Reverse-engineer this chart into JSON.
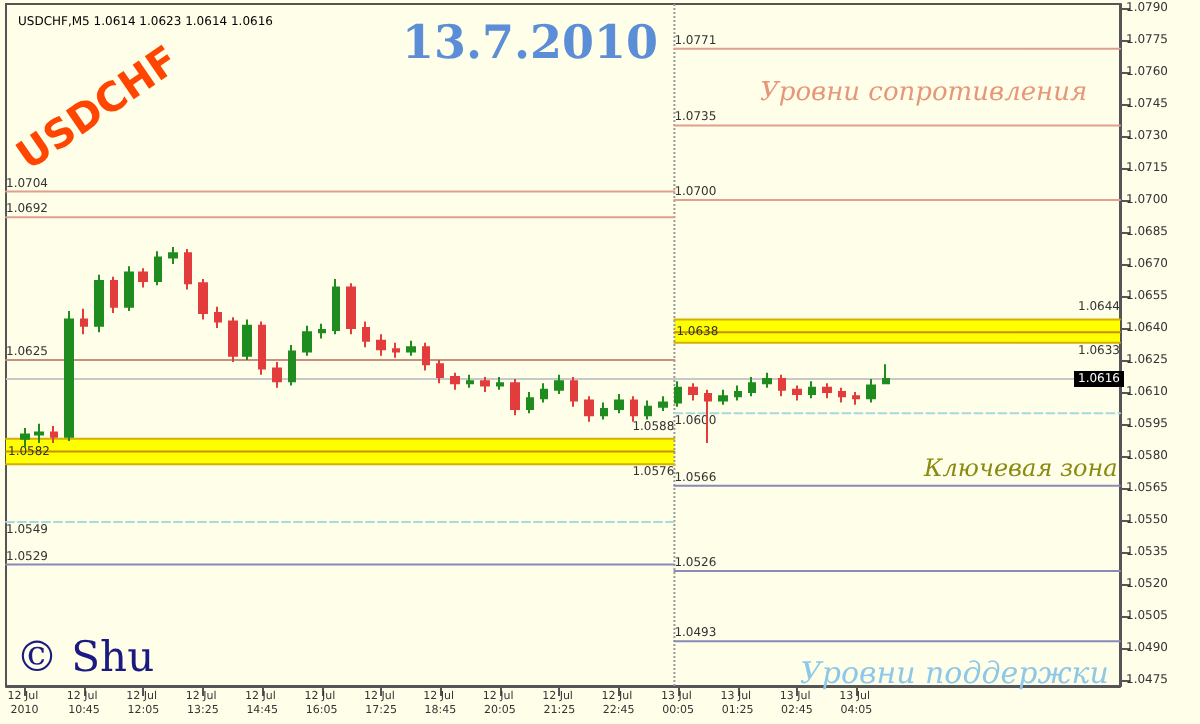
{
  "chart_data": {
    "type": "candlestick",
    "title": "13.7.2010",
    "subtitle": "USDCHF,M5 1.0614 1.0623 1.0614 1.0616",
    "annotations": [
      "USDCHF",
      "Уровни сопротивления",
      "Ключевая зона",
      "Уровни поддержки",
      "© Shu"
    ],
    "x": [
      "2010-07-12T09:25",
      "2010-07-12T09:45",
      "2010-07-12T10:05",
      "2010-07-12T10:25",
      "2010-07-12T10:45",
      "2010-07-12T11:05",
      "2010-07-12T11:25",
      "2010-07-12T11:45",
      "2010-07-12T12:05",
      "2010-07-12T12:25",
      "2010-07-12T12:45",
      "2010-07-12T13:05",
      "2010-07-12T13:25",
      "2010-07-12T13:45",
      "2010-07-12T14:05",
      "2010-07-12T14:25",
      "2010-07-12T14:45",
      "2010-07-12T15:05",
      "2010-07-12T15:25",
      "2010-07-12T15:45",
      "2010-07-12T16:05",
      "2010-07-12T16:25",
      "2010-07-12T16:45",
      "2010-07-12T17:05",
      "2010-07-12T17:25",
      "2010-07-12T17:45",
      "2010-07-12T18:05",
      "2010-07-12T18:25",
      "2010-07-12T18:45",
      "2010-07-12T19:05",
      "2010-07-12T19:25",
      "2010-07-12T19:45",
      "2010-07-12T20:05",
      "2010-07-12T20:25",
      "2010-07-12T20:45",
      "2010-07-12T21:05",
      "2010-07-12T21:25",
      "2010-07-12T21:45",
      "2010-07-12T22:05",
      "2010-07-12T22:25",
      "2010-07-12T22:45",
      "2010-07-12T23:05",
      "2010-07-12T23:25",
      "2010-07-12T23:45",
      "2010-07-13T00:05",
      "2010-07-13T00:25",
      "2010-07-13T00:45",
      "2010-07-13T01:05",
      "2010-07-13T01:25",
      "2010-07-13T01:45",
      "2010-07-13T02:05",
      "2010-07-13T02:25",
      "2010-07-13T02:45",
      "2010-07-13T03:05",
      "2010-07-13T03:25",
      "2010-07-13T03:45",
      "2010-07-13T04:05",
      "2010-07-13T04:25",
      "2010-07-13T04:45"
    ],
    "ohlc": [
      [
        1.0588,
        1.0593,
        1.0584,
        1.059
      ],
      [
        1.059,
        1.0595,
        1.0586,
        1.0591
      ],
      [
        1.0591,
        1.0594,
        1.0586,
        1.0589
      ],
      [
        1.0589,
        1.0648,
        1.0587,
        1.0644
      ],
      [
        1.0644,
        1.0649,
        1.0637,
        1.0641
      ],
      [
        1.0641,
        1.0665,
        1.0638,
        1.0662
      ],
      [
        1.0662,
        1.0664,
        1.0647,
        1.065
      ],
      [
        1.065,
        1.0669,
        1.0648,
        1.0666
      ],
      [
        1.0666,
        1.0668,
        1.0659,
        1.0662
      ],
      [
        1.0662,
        1.0676,
        1.066,
        1.0673
      ],
      [
        1.0673,
        1.0678,
        1.067,
        1.0675
      ],
      [
        1.0675,
        1.0677,
        1.0658,
        1.0661
      ],
      [
        1.0661,
        1.0663,
        1.0644,
        1.0647
      ],
      [
        1.0647,
        1.065,
        1.064,
        1.0643
      ],
      [
        1.0643,
        1.0645,
        1.0624,
        1.0627
      ],
      [
        1.0627,
        1.0644,
        1.0625,
        1.0641
      ],
      [
        1.0641,
        1.0643,
        1.0618,
        1.0621
      ],
      [
        1.0621,
        1.0624,
        1.0612,
        1.0615
      ],
      [
        1.0615,
        1.0632,
        1.0613,
        1.0629
      ],
      [
        1.0629,
        1.0641,
        1.0627,
        1.0638
      ],
      [
        1.0638,
        1.0642,
        1.0635,
        1.0639
      ],
      [
        1.0639,
        1.0663,
        1.0637,
        1.0659
      ],
      [
        1.0659,
        1.0661,
        1.0637,
        1.064
      ],
      [
        1.064,
        1.0643,
        1.0631,
        1.0634
      ],
      [
        1.0634,
        1.0637,
        1.0627,
        1.063
      ],
      [
        1.063,
        1.0633,
        1.0626,
        1.0629
      ],
      [
        1.0629,
        1.0634,
        1.0627,
        1.0631
      ],
      [
        1.0631,
        1.0633,
        1.062,
        1.0623
      ],
      [
        1.0623,
        1.0625,
        1.0614,
        1.0617
      ],
      [
        1.0617,
        1.0619,
        1.0611,
        1.0614
      ],
      [
        1.0614,
        1.0618,
        1.0612,
        1.0615
      ],
      [
        1.0615,
        1.0617,
        1.061,
        1.0613
      ],
      [
        1.0613,
        1.0617,
        1.0611,
        1.0614
      ],
      [
        1.0614,
        1.0616,
        1.0599,
        1.0602
      ],
      [
        1.0602,
        1.061,
        1.06,
        1.0607
      ],
      [
        1.0607,
        1.0614,
        1.0605,
        1.0611
      ],
      [
        1.0611,
        1.0618,
        1.0609,
        1.0615
      ],
      [
        1.0615,
        1.0617,
        1.0603,
        1.0606
      ],
      [
        1.0606,
        1.0608,
        1.0596,
        1.0599
      ],
      [
        1.0599,
        1.0605,
        1.0597,
        1.0602
      ],
      [
        1.0602,
        1.0609,
        1.06,
        1.0606
      ],
      [
        1.0606,
        1.0608,
        1.0596,
        1.0599
      ],
      [
        1.0599,
        1.0606,
        1.0597,
        1.0603
      ],
      [
        1.0603,
        1.0608,
        1.0601,
        1.0605
      ],
      [
        1.0605,
        1.0615,
        1.0603,
        1.0612
      ],
      [
        1.0612,
        1.0614,
        1.0606,
        1.0609
      ],
      [
        1.0609,
        1.0611,
        1.0586,
        1.0606
      ],
      [
        1.0606,
        1.0611,
        1.0604,
        1.0608
      ],
      [
        1.0608,
        1.0613,
        1.0606,
        1.061
      ],
      [
        1.061,
        1.0617,
        1.0608,
        1.0614
      ],
      [
        1.0614,
        1.0619,
        1.0612,
        1.0616
      ],
      [
        1.0616,
        1.0618,
        1.0608,
        1.0611
      ],
      [
        1.0611,
        1.0613,
        1.0606,
        1.0609
      ],
      [
        1.0609,
        1.0615,
        1.0607,
        1.0612
      ],
      [
        1.0612,
        1.0614,
        1.0607,
        1.061
      ],
      [
        1.061,
        1.0612,
        1.0605,
        1.0608
      ],
      [
        1.0608,
        1.061,
        1.0604,
        1.0607
      ],
      [
        1.0607,
        1.0616,
        1.0605,
        1.0613
      ],
      [
        1.0614,
        1.0623,
        1.0614,
        1.0616
      ]
    ],
    "series": [
      {
        "type": "line",
        "name": "1.0704",
        "color": "#e0a090",
        "x": [
          "2010-07-12T09:00",
          "2010-07-13T00:00"
        ],
        "values": [
          1.0704,
          1.0704
        ]
      },
      {
        "type": "line",
        "name": "1.0692",
        "color": "#e0a090",
        "x": [
          "2010-07-12T09:00",
          "2010-07-13T00:00"
        ],
        "values": [
          1.0692,
          1.0692
        ]
      },
      {
        "type": "line",
        "name": "1.0625",
        "color": "#c8907c",
        "x": [
          "2010-07-12T09:00",
          "2010-07-13T00:00"
        ],
        "values": [
          1.0625,
          1.0625
        ]
      },
      {
        "type": "line",
        "name": "1.0588",
        "color": "#d4b000",
        "x": [
          "2010-07-12T09:00",
          "2010-07-13T00:00"
        ],
        "values": [
          1.0588,
          1.0588
        ]
      },
      {
        "type": "line",
        "name": "1.0582",
        "color": "#c89000",
        "x": [
          "2010-07-12T09:00",
          "2010-07-13T00:00"
        ],
        "values": [
          1.0582,
          1.0582
        ],
        "lower": [
          1.0576,
          1.0576
        ],
        "upper": [
          1.0588,
          1.0588
        ]
      },
      {
        "type": "line",
        "name": "1.0576",
        "color": "#d4b000",
        "x": [
          "2010-07-12T09:00",
          "2010-07-13T00:00"
        ],
        "values": [
          1.0576,
          1.0576
        ]
      },
      {
        "type": "line",
        "name": "1.0549",
        "color": "#a8d8e0",
        "line_style": "dashed",
        "x": [
          "2010-07-12T09:00",
          "2010-07-13T00:00"
        ],
        "values": [
          1.0549,
          1.0549
        ]
      },
      {
        "type": "line",
        "name": "1.0529",
        "color": "#8a8ab8",
        "x": [
          "2010-07-12T09:00",
          "2010-07-13T00:00"
        ],
        "values": [
          1.0529,
          1.0529
        ]
      },
      {
        "type": "line",
        "name": "1.0771",
        "color": "#e0a090",
        "x": [
          "2010-07-13T00:00",
          "2010-07-13T10:00"
        ],
        "values": [
          1.0771,
          1.0771
        ]
      },
      {
        "type": "line",
        "name": "1.0735",
        "color": "#e0a090",
        "x": [
          "2010-07-13T00:00",
          "2010-07-13T10:00"
        ],
        "values": [
          1.0735,
          1.0735
        ]
      },
      {
        "type": "line",
        "name": "1.0700",
        "color": "#e0a090",
        "x": [
          "2010-07-13T00:00",
          "2010-07-13T10:00"
        ],
        "values": [
          1.07,
          1.07
        ]
      },
      {
        "type": "line",
        "name": "1.0644",
        "color": "#d4b000",
        "x": [
          "2010-07-13T00:00",
          "2010-07-13T10:00"
        ],
        "values": [
          1.0644,
          1.0644
        ]
      },
      {
        "type": "line",
        "name": "1.0638",
        "color": "#c89000",
        "x": [
          "2010-07-13T00:00",
          "2010-07-13T10:00"
        ],
        "values": [
          1.0638,
          1.0638
        ],
        "lower": [
          1.0633,
          1.0633
        ],
        "upper": [
          1.0644,
          1.0644
        ]
      },
      {
        "type": "line",
        "name": "1.0633",
        "color": "#d4b000",
        "x": [
          "2010-07-13T00:00",
          "2010-07-13T10:00"
        ],
        "values": [
          1.0633,
          1.0633
        ]
      },
      {
        "type": "line",
        "name": "1.0600",
        "color": "#a8d8e0",
        "line_style": "dashed",
        "x": [
          "2010-07-13T00:00",
          "2010-07-13T10:00"
        ],
        "values": [
          1.06,
          1.06
        ]
      },
      {
        "type": "line",
        "name": "1.0566",
        "color": "#8a8ab8",
        "x": [
          "2010-07-13T00:00",
          "2010-07-13T10:00"
        ],
        "values": [
          1.0566,
          1.0566
        ]
      },
      {
        "type": "line",
        "name": "1.0526",
        "color": "#8a8ab8",
        "x": [
          "2010-07-13T00:00",
          "2010-07-13T10:00"
        ],
        "values": [
          1.0526,
          1.0526
        ]
      },
      {
        "type": "line",
        "name": "1.0493",
        "color": "#8a8ab8",
        "x": [
          "2010-07-13T00:00",
          "2010-07-13T10:00"
        ],
        "values": [
          1.0493,
          1.0493
        ]
      }
    ],
    "ref_lines": [
      {
        "axis": "y",
        "value": 1.0616,
        "label": "1.0616",
        "color": "#c8c8c8"
      },
      {
        "axis": "x",
        "value": "2010-07-13T00:00",
        "color": "#999999",
        "line_style": "dotted"
      }
    ],
    "xlim": [
      "2010-07-12T09:00",
      "2010-07-13T10:00"
    ],
    "xticks": [
      {
        "value": "2010-07-12T09:25",
        "label": "12 Jul 2010"
      },
      {
        "value": "2010-07-12T10:45",
        "label": "12 Jul 10:45"
      },
      {
        "value": "2010-07-12T12:05",
        "label": "12 Jul 12:05"
      },
      {
        "value": "2010-07-12T13:25",
        "label": "12 Jul 13:25"
      },
      {
        "value": "2010-07-12T14:45",
        "label": "12 Jul 14:45"
      },
      {
        "value": "2010-07-12T16:05",
        "label": "12 Jul 16:05"
      },
      {
        "value": "2010-07-12T17:25",
        "label": "12 Jul 17:25"
      },
      {
        "value": "2010-07-12T18:45",
        "label": "12 Jul 18:45"
      },
      {
        "value": "2010-07-12T20:05",
        "label": "12 Jul 20:05"
      },
      {
        "value": "2010-07-12T21:25",
        "label": "12 Jul 21:25"
      },
      {
        "value": "2010-07-12T22:45",
        "label": "12 Jul 22:45"
      },
      {
        "value": "2010-07-13T00:05",
        "label": "13 Jul 00:05"
      },
      {
        "value": "2010-07-13T01:25",
        "label": "13 Jul 01:25"
      },
      {
        "value": "2010-07-13T02:45",
        "label": "13 Jul 02:45"
      },
      {
        "value": "2010-07-13T04:05",
        "label": "13 Jul 04:05"
      }
    ],
    "ylim": [
      1.0472,
      1.0792
    ],
    "yticks": [
      1.0475,
      {
        "value": 1.049,
        "label": "1.0490"
      },
      1.0505,
      {
        "value": 1.052,
        "label": "1.0520"
      },
      1.0535,
      {
        "value": 1.055,
        "label": "1.0550"
      },
      1.0565,
      {
        "value": 1.058,
        "label": "1.0580"
      },
      1.0595,
      {
        "value": 1.061,
        "label": "1.0610"
      },
      1.0625,
      {
        "value": 1.064,
        "label": "1.0640"
      },
      1.0655,
      {
        "value": 1.067,
        "label": "1.0670"
      },
      1.0685,
      {
        "value": 1.07,
        "label": "1.0700"
      },
      1.0715,
      {
        "value": 1.073,
        "label": "1.0730"
      },
      1.0745,
      {
        "value": 1.076,
        "label": "1.0760"
      },
      1.0775,
      {
        "value": 1.079,
        "label": "1.0790"
      }
    ],
    "grid": false,
    "legend": false
  }
}
